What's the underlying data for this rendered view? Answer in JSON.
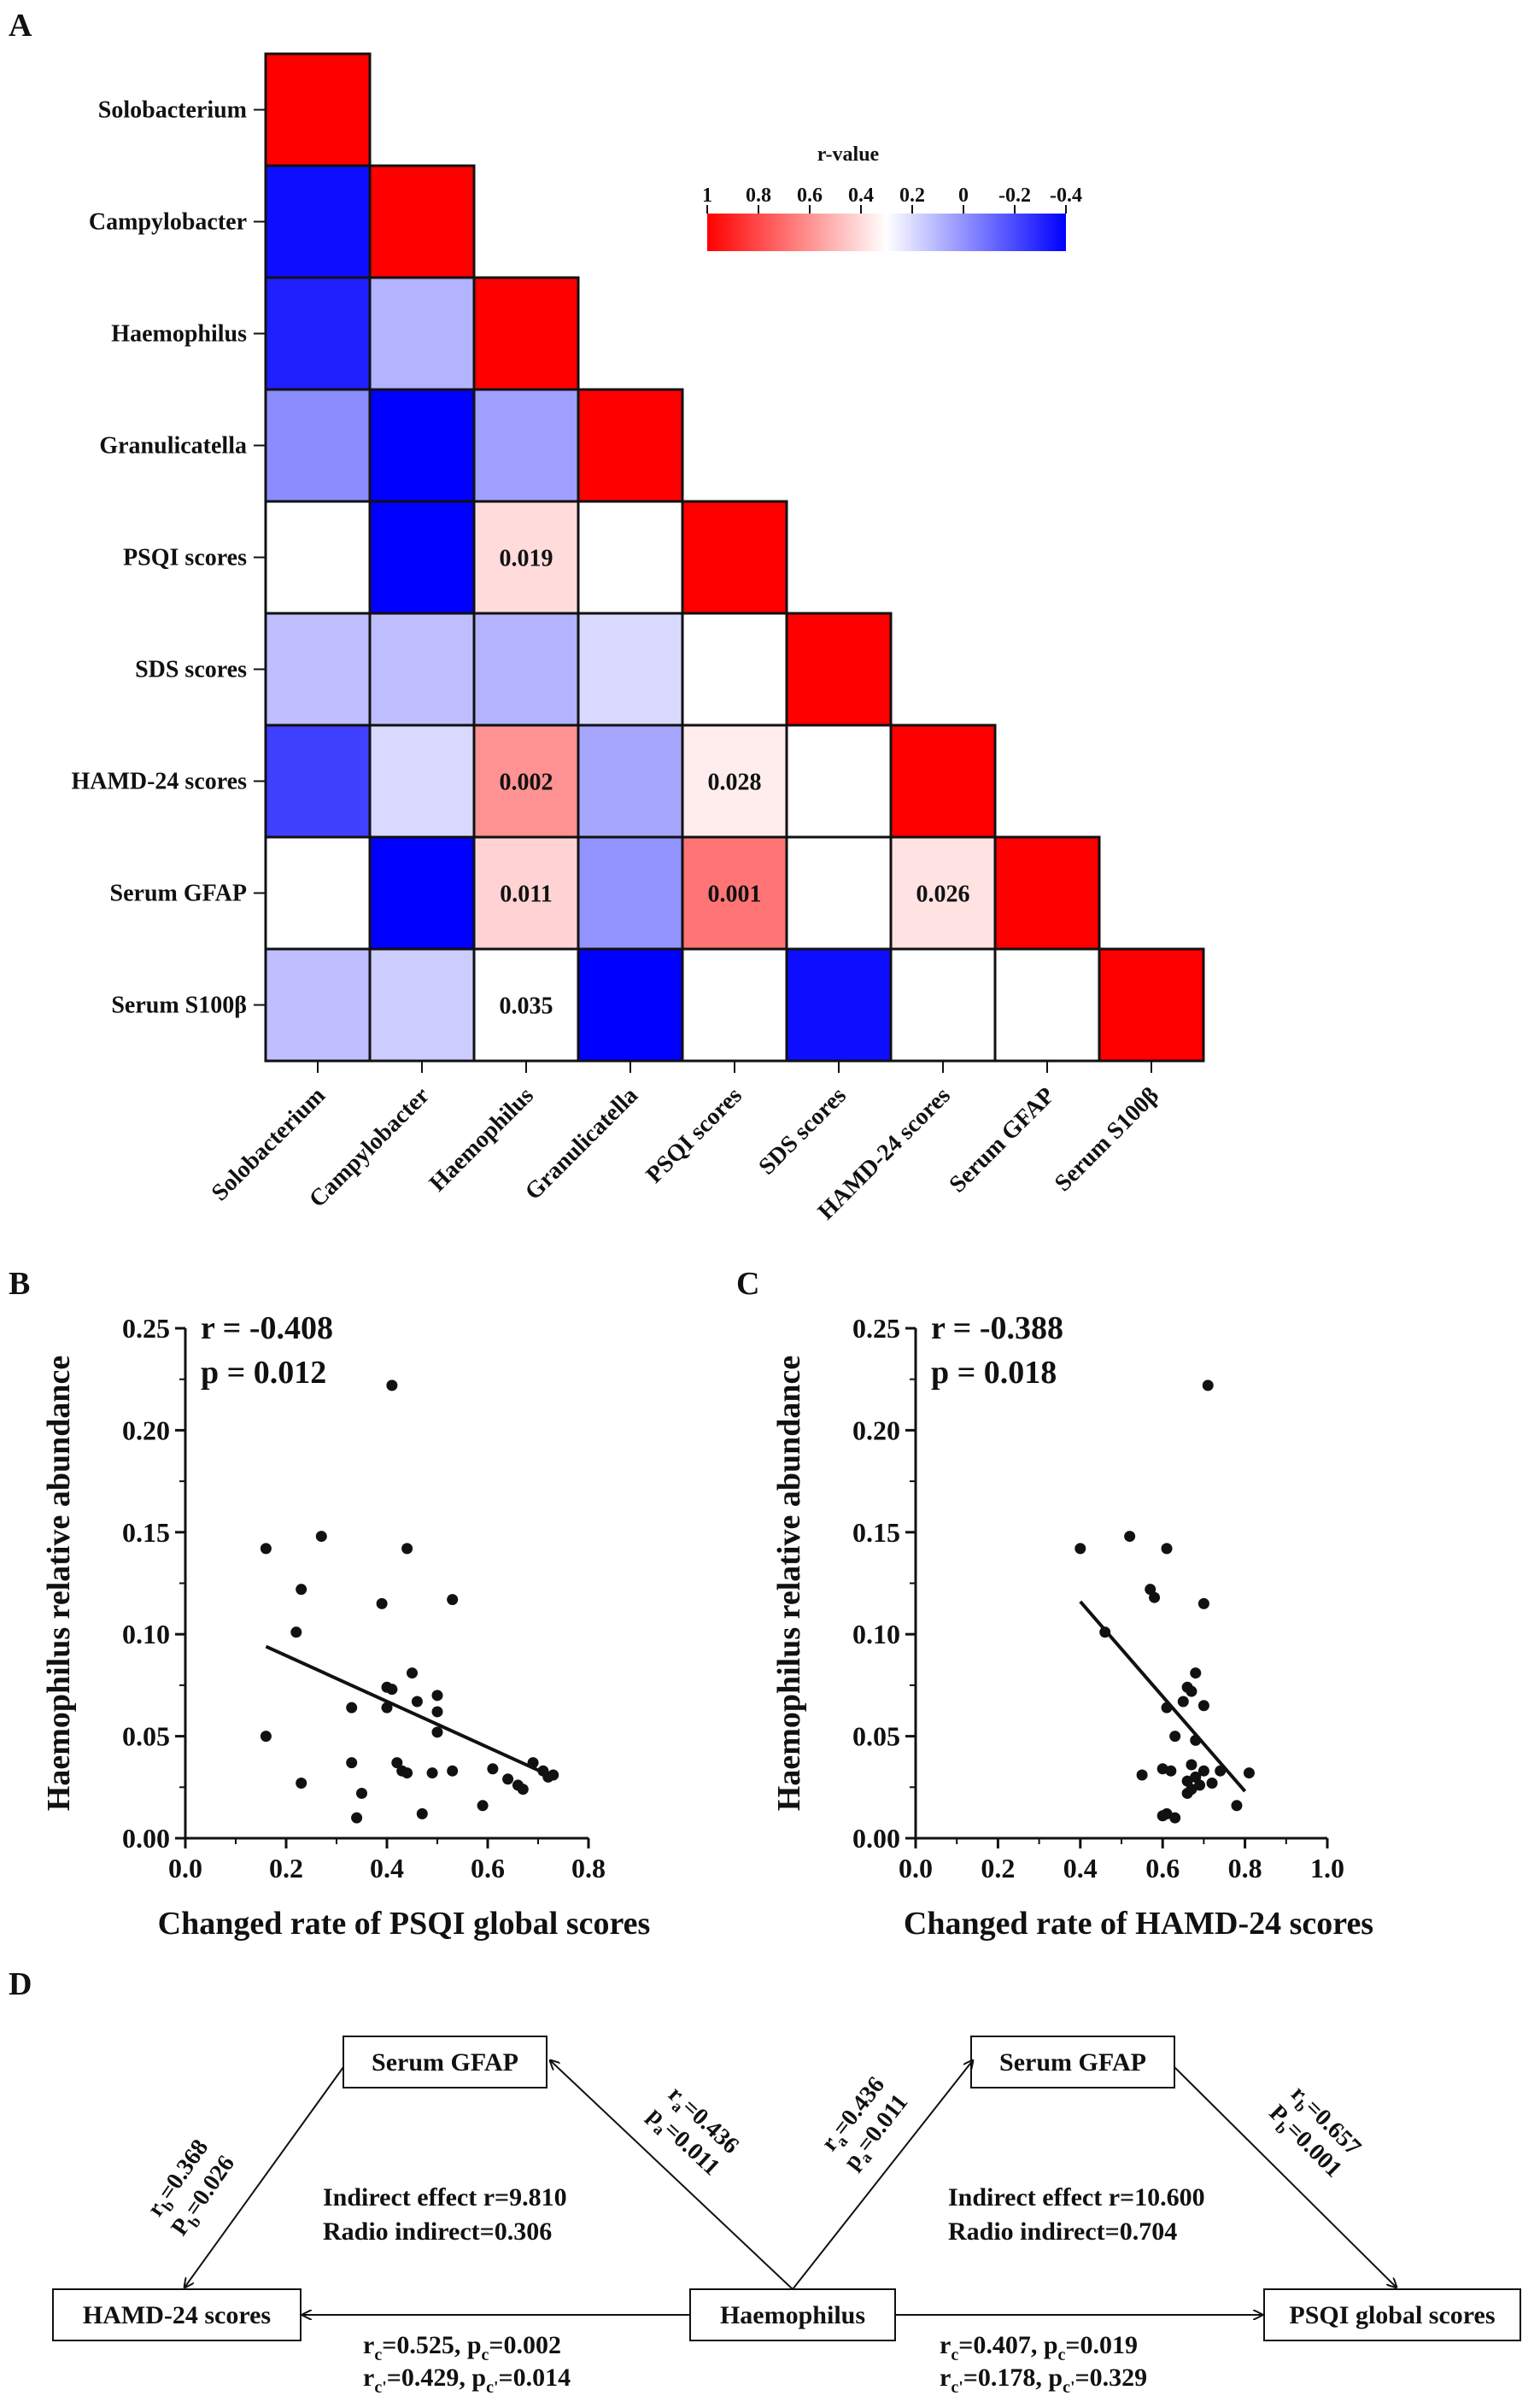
{
  "panels": {
    "A": "A",
    "B": "B",
    "C": "C",
    "D": "D"
  },
  "chart_data": [
    {
      "type": "heatmap",
      "panel": "A",
      "variables": [
        "Solobacterium",
        "Campylobacter",
        "Haemophilus",
        "Granulicatella",
        "PSQI scores",
        "SDS scores",
        "HAMD-24 scores",
        "Serum GFAP",
        "Serum S100β"
      ],
      "values": [
        [
          1
        ],
        [
          -0.38,
          1
        ],
        [
          -0.35,
          -0.12,
          1
        ],
        [
          -0.18,
          -0.42,
          -0.15,
          1
        ],
        [
          0.12,
          -0.55,
          0.4,
          0.05,
          1
        ],
        [
          -0.1,
          -0.1,
          -0.12,
          -0.06,
          0.12,
          1
        ],
        [
          -0.3,
          -0.06,
          0.6,
          -0.14,
          0.35,
          0.05,
          1
        ],
        [
          0.14,
          -0.45,
          0.42,
          -0.17,
          0.68,
          0.25,
          0.38,
          1
        ],
        [
          -0.1,
          -0.08,
          0.3,
          -0.42,
          0.05,
          -0.38,
          0.28,
          0.15,
          1
        ]
      ],
      "annotations": [
        {
          "row": 4,
          "col": 2,
          "text": "0.019"
        },
        {
          "row": 6,
          "col": 2,
          "text": "0.002"
        },
        {
          "row": 6,
          "col": 4,
          "text": "0.028"
        },
        {
          "row": 7,
          "col": 2,
          "text": "0.011"
        },
        {
          "row": 7,
          "col": 4,
          "text": "0.001"
        },
        {
          "row": 7,
          "col": 6,
          "text": "0.026"
        },
        {
          "row": 8,
          "col": 2,
          "text": "0.035"
        }
      ],
      "colorbar": {
        "title": "r-value",
        "ticks": [
          "1",
          "0.8",
          "0.6",
          "0.4",
          "0.2",
          "0",
          "-0.2",
          "-0.4"
        ],
        "range": [
          1,
          -0.4
        ],
        "colors": [
          "#ff0000",
          "#ffffff",
          "#0000ff"
        ]
      }
    },
    {
      "type": "scatter",
      "panel": "B",
      "xlabel": "Changed rate of PSQI global scores",
      "ylabel": "Haemophilus relative abundance",
      "xlim": [
        0,
        0.8
      ],
      "ylim": [
        0,
        0.25
      ],
      "xticks": [
        "0.0",
        "0.2",
        "0.4",
        "0.6",
        "0.8"
      ],
      "yticks": [
        "0.00",
        "0.05",
        "0.10",
        "0.15",
        "0.20",
        "0.25"
      ],
      "stats": [
        "r = -0.408",
        "p = 0.012"
      ],
      "points": [
        [
          0.41,
          0.222
        ],
        [
          0.27,
          0.148
        ],
        [
          0.16,
          0.142
        ],
        [
          0.44,
          0.142
        ],
        [
          0.23,
          0.122
        ],
        [
          0.53,
          0.117
        ],
        [
          0.39,
          0.115
        ],
        [
          0.22,
          0.101
        ],
        [
          0.45,
          0.081
        ],
        [
          0.4,
          0.074
        ],
        [
          0.41,
          0.073
        ],
        [
          0.5,
          0.07
        ],
        [
          0.46,
          0.067
        ],
        [
          0.33,
          0.064
        ],
        [
          0.4,
          0.064
        ],
        [
          0.5,
          0.062
        ],
        [
          0.5,
          0.052
        ],
        [
          0.16,
          0.05
        ],
        [
          0.33,
          0.037
        ],
        [
          0.42,
          0.037
        ],
        [
          0.69,
          0.037
        ],
        [
          0.71,
          0.033
        ],
        [
          0.43,
          0.033
        ],
        [
          0.44,
          0.032
        ],
        [
          0.53,
          0.033
        ],
        [
          0.61,
          0.034
        ],
        [
          0.73,
          0.031
        ],
        [
          0.49,
          0.032
        ],
        [
          0.64,
          0.029
        ],
        [
          0.72,
          0.03
        ],
        [
          0.66,
          0.026
        ],
        [
          0.67,
          0.024
        ],
        [
          0.23,
          0.027
        ],
        [
          0.35,
          0.022
        ],
        [
          0.59,
          0.016
        ],
        [
          0.47,
          0.012
        ],
        [
          0.34,
          0.01
        ]
      ],
      "fit": {
        "x": [
          0.16,
          0.73
        ],
        "y": [
          0.094,
          0.03
        ]
      }
    },
    {
      "type": "scatter",
      "panel": "C",
      "xlabel": "Changed rate of HAMD-24 scores",
      "ylabel": "Haemophilus relative abundance",
      "xlim": [
        0,
        1.0
      ],
      "ylim": [
        0,
        0.25
      ],
      "xticks": [
        "0.0",
        "0.2",
        "0.4",
        "0.6",
        "0.8",
        "1.0"
      ],
      "yticks": [
        "0.00",
        "0.05",
        "0.10",
        "0.15",
        "0.20",
        "0.25"
      ],
      "stats": [
        "r = -0.388",
        "p = 0.018"
      ],
      "points": [
        [
          0.71,
          0.222
        ],
        [
          0.52,
          0.148
        ],
        [
          0.4,
          0.142
        ],
        [
          0.61,
          0.142
        ],
        [
          0.57,
          0.122
        ],
        [
          0.58,
          0.118
        ],
        [
          0.7,
          0.115
        ],
        [
          0.46,
          0.101
        ],
        [
          0.68,
          0.081
        ],
        [
          0.66,
          0.074
        ],
        [
          0.67,
          0.072
        ],
        [
          0.65,
          0.067
        ],
        [
          0.7,
          0.065
        ],
        [
          0.61,
          0.064
        ],
        [
          0.63,
          0.05
        ],
        [
          0.68,
          0.048
        ],
        [
          0.6,
          0.034
        ],
        [
          0.62,
          0.033
        ],
        [
          0.55,
          0.031
        ],
        [
          0.67,
          0.036
        ],
        [
          0.7,
          0.033
        ],
        [
          0.74,
          0.033
        ],
        [
          0.81,
          0.032
        ],
        [
          0.66,
          0.028
        ],
        [
          0.68,
          0.03
        ],
        [
          0.72,
          0.027
        ],
        [
          0.67,
          0.024
        ],
        [
          0.69,
          0.026
        ],
        [
          0.66,
          0.022
        ],
        [
          0.78,
          0.016
        ],
        [
          0.61,
          0.012
        ],
        [
          0.63,
          0.01
        ],
        [
          0.6,
          0.011
        ]
      ],
      "fit": {
        "x": [
          0.4,
          0.8
        ],
        "y": [
          0.116,
          0.023
        ]
      }
    },
    {
      "type": "diagram",
      "panel": "D",
      "boxes": {
        "gfap_left": "Serum GFAP",
        "gfap_right": "Serum GFAP",
        "hamd": "HAMD-24 scores",
        "haemophilus": "Haemophilus",
        "psqi": "PSQI global scores"
      },
      "left": {
        "rb_main": "r",
        "rb_sub": "b",
        "rb_val": "=0.368",
        "pb_main": "P",
        "pb_sub": "b",
        "pb_val": "=0.026",
        "ra_main": "r",
        "ra_sub": "a",
        "ra_val": "=0.436",
        "pa_main": "p",
        "pa_sub": "a",
        "pa_val": "=0.011",
        "indirect": "Indirect effect r=9.810",
        "radio": "Radio indirect=0.306",
        "rc_line": [
          "r",
          "c",
          "=0.525, ",
          "p",
          "c",
          "=0.002"
        ],
        "rc2_line": [
          "r",
          "c'",
          "=0.429, ",
          "p",
          "c'",
          "=0.014"
        ]
      },
      "right": {
        "ra_main": "r",
        "ra_sub": "a",
        "ra_val": "=0.436",
        "pa_main": "p",
        "pa_sub": "a",
        "pa_val": "=0.011",
        "rb_main": "r",
        "rb_sub": "b",
        "rb_val": "=0.657",
        "pb_main": "P",
        "pb_sub": "b",
        "pb_val": "=0.001",
        "indirect": "Indirect effect r=10.600",
        "radio": "Radio indirect=0.704",
        "rc_line": [
          "r",
          "c",
          "=0.407, ",
          "p",
          "c",
          "=0.019"
        ],
        "rc2_line": [
          "r",
          "c'",
          "=0.178, ",
          "p",
          "c'",
          "=0.329"
        ]
      }
    }
  ]
}
